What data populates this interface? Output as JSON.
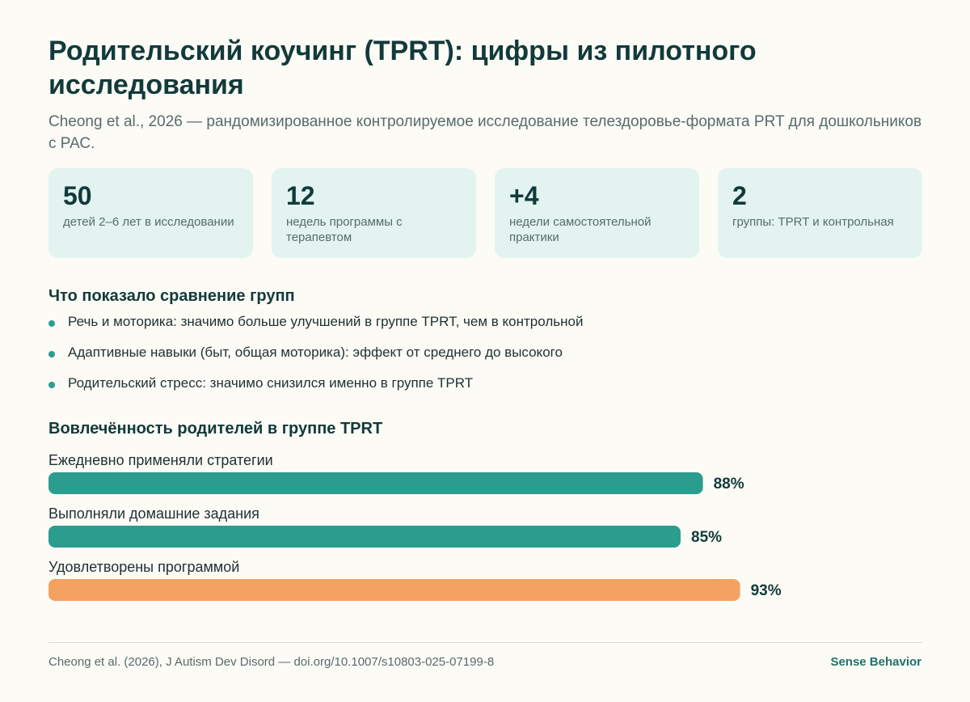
{
  "title": "Родительский коучинг (TPRT): цифры из пилотного исследования",
  "subtitle": "Cheong et al., 2026 — рандомизированное контролируемое исследование телездоровье-формата PRT для дошкольников с РАС.",
  "stats": [
    {
      "value": "50",
      "desc": "детей 2–6 лет в исследовании"
    },
    {
      "value": "12",
      "desc": "недель программы с терапевтом"
    },
    {
      "value": "+4",
      "desc": "недели самостоятельной практики"
    },
    {
      "value": "2",
      "desc": "группы: TPRT и контрольная"
    }
  ],
  "findings": {
    "title": "Что показало сравнение групп",
    "items": [
      "Речь и моторика: значимо больше улучшений в группе TPRT, чем в контрольной",
      "Адаптивные навыки (быт, общая моторика): эффект от среднего до высокого",
      "Родительский стресс: значимо снизился именно в группе TPRT"
    ]
  },
  "chart_data": {
    "type": "bar",
    "orientation": "horizontal",
    "title": "Вовлечённость родителей в группе TPRT",
    "categories": [
      "Ежедневно применяли стратегии",
      "Выполняли домашние задания",
      "Удовлетворены программой"
    ],
    "values": [
      88,
      85,
      93
    ],
    "value_labels": [
      "88%",
      "85%",
      "93%"
    ],
    "unit": "%",
    "xlim": [
      0,
      100
    ],
    "bar_colors": [
      "#2a9d8f",
      "#2a9d8f",
      "#f4a261"
    ],
    "grid": false,
    "legend": "none"
  },
  "footer": {
    "citation": "Cheong et al. (2026), J Autism Dev Disord — doi.org/10.1007/s10803-025-07199-8",
    "brand": "Sense Behavior"
  }
}
